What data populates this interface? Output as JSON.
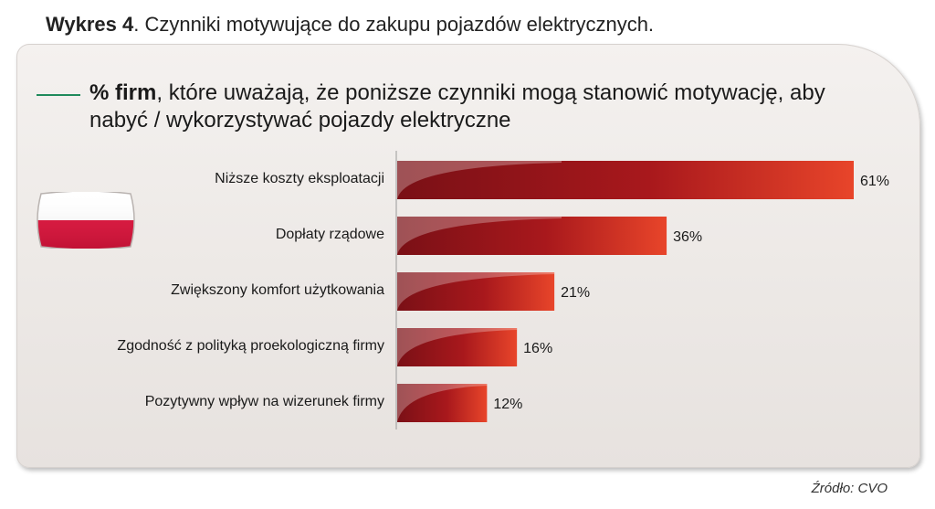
{
  "figure": {
    "title_bold": "Wykres 4",
    "title_rest": ". Czynniki motywujące do zakupu pojazdów elektrycznych.",
    "heading_bold": "% firm",
    "heading_rest": ", które uważają, że poniższe czynniki mogą stanowić motywację, aby nabyć / wykorzystywać pojazdy elektryczne",
    "source": "Źródło: CVO"
  },
  "colors": {
    "bar_dark": "#7a1016",
    "bar_light": "#e8452a",
    "legend_line": "#1f8a5c",
    "flag_white": "#ffffff",
    "flag_red": "#dc143c"
  },
  "chart_data": {
    "type": "bar",
    "orientation": "horizontal",
    "categories": [
      "Niższe koszty eksploatacji",
      "Dopłaty rządowe",
      "Zwiększony komfort użytkowania",
      "Zgodność z polityką proekologiczną firmy",
      "Pozytywny wpływ na wizerunek firmy"
    ],
    "values": [
      61,
      36,
      21,
      16,
      12
    ],
    "value_labels": [
      "61%",
      "36%",
      "21%",
      "16%",
      "12%"
    ],
    "unit": "%",
    "xlim": [
      0,
      100
    ],
    "grid": false,
    "legend": "none"
  }
}
